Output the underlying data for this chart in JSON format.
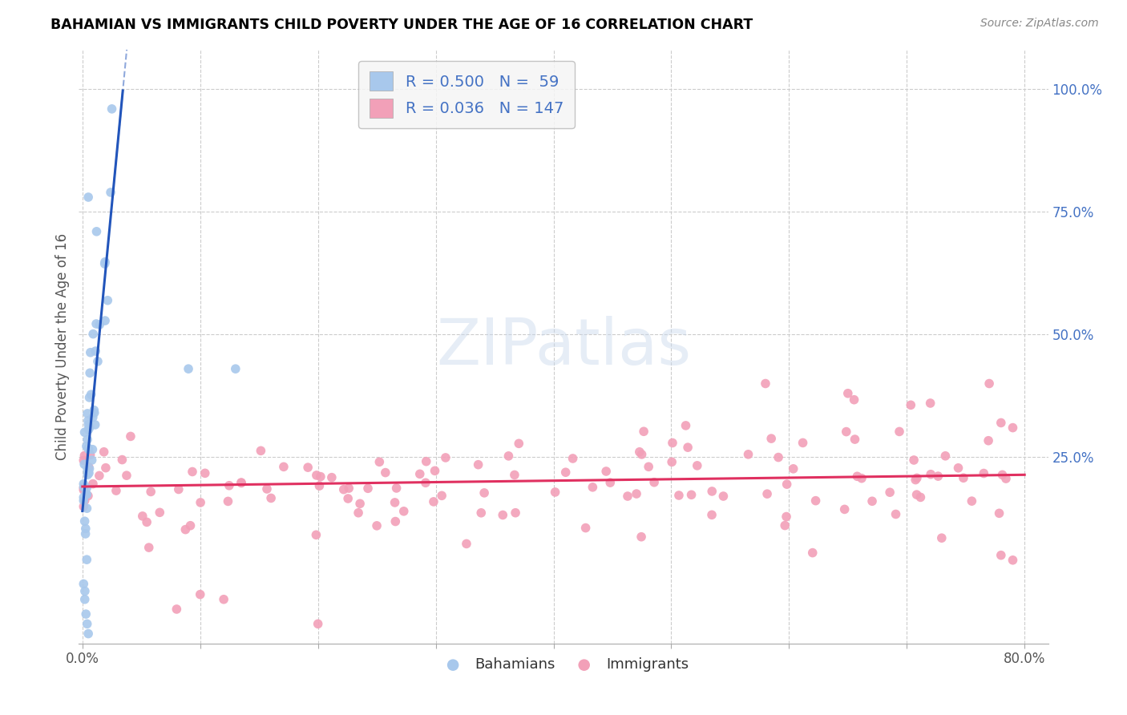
{
  "title": "BAHAMIAN VS IMMIGRANTS CHILD POVERTY UNDER THE AGE OF 16 CORRELATION CHART",
  "source": "Source: ZipAtlas.com",
  "ylabel": "Child Poverty Under the Age of 16",
  "xlim": [
    -0.003,
    0.82
  ],
  "ylim": [
    -0.13,
    1.08
  ],
  "xticks": [
    0.0,
    0.1,
    0.2,
    0.3,
    0.4,
    0.5,
    0.6,
    0.7,
    0.8
  ],
  "xticklabels": [
    "0.0%",
    "",
    "",
    "",
    "",
    "",
    "",
    "",
    "80.0%"
  ],
  "yticks_right": [
    1.0,
    0.75,
    0.5,
    0.25
  ],
  "yticklabels_right": [
    "100.0%",
    "75.0%",
    "50.0%",
    "25.0%"
  ],
  "bahamians_color": "#A8C8EC",
  "immigrants_color": "#F2A0B8",
  "blue_line_color": "#2255BB",
  "pink_line_color": "#E03060",
  "legend_R_blue": "0.500",
  "legend_N_blue": "59",
  "legend_R_pink": "0.036",
  "legend_N_pink": "147",
  "background_color": "#FFFFFF",
  "grid_color": "#CCCCCC",
  "right_tick_color": "#4472C4",
  "title_color": "#000000",
  "source_color": "#888888",
  "ylabel_color": "#555555",
  "tick_label_color": "#555555"
}
